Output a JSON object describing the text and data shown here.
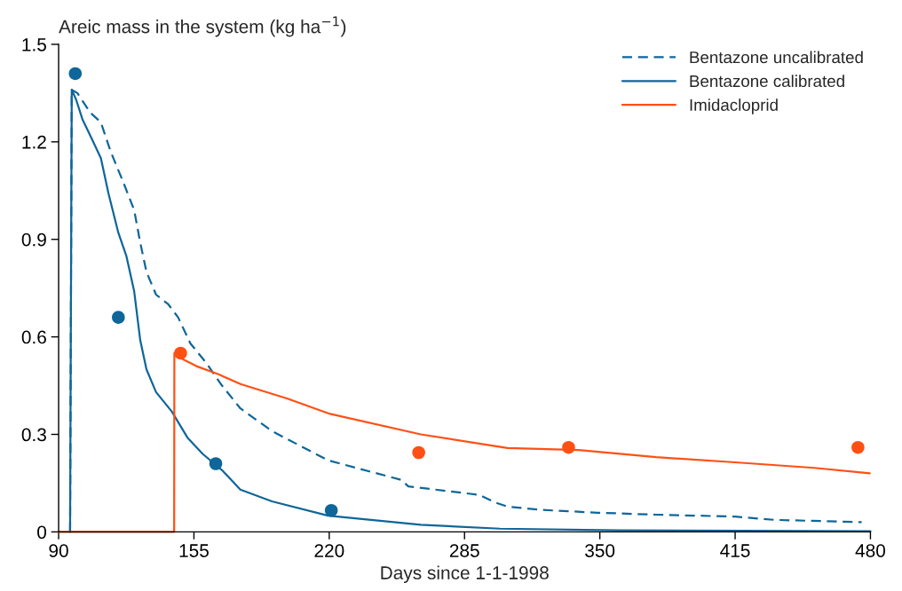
{
  "chart_data": {
    "type": "line",
    "ylabel": "Areic mass in the system (kg ha$^{−1}$)",
    "xlabel": "Days since 1-1-1998",
    "xlim": [
      90,
      480
    ],
    "xticks": [
      90,
      155,
      220,
      285,
      350,
      415,
      480
    ],
    "ylim": [
      0,
      1.5
    ],
    "yticks": [
      0,
      0.3,
      0.6,
      0.9,
      1.2,
      1.5
    ],
    "grid": false,
    "legend": "top right",
    "series": [
      {
        "name": "Bentazone uncalibrated",
        "line_style": "dashed",
        "color": "#0e6699",
        "x": [
          95.5,
          96.3,
          99,
          105.2,
          110.3,
          115,
          120.8,
          126.3,
          129.2,
          132.2,
          136.8,
          142.7,
          147.4,
          153.3,
          160.9,
          168.5,
          177.3,
          192.5,
          219.5,
          254.6,
          258,
          292,
          300,
          305.6,
          321,
          349,
          377,
          415,
          434,
          475.8
        ],
        "values": [
          0,
          1.36,
          1.35,
          1.29,
          1.26,
          1.17,
          1.08,
          0.99,
          0.89,
          0.8,
          0.73,
          0.7,
          0.66,
          0.58,
          0.52,
          0.45,
          0.38,
          0.31,
          0.22,
          0.16,
          0.14,
          0.114,
          0.09,
          0.078,
          0.068,
          0.059,
          0.053,
          0.047,
          0.037,
          0.03
        ]
      },
      {
        "name": "Bentazone calibrated",
        "line_style": "solid",
        "color": "#0e6699",
        "x": [
          95.5,
          96.3,
          98.4,
          101.4,
          105.9,
          110.3,
          114,
          118.7,
          122.5,
          126.3,
          129.2,
          132.2,
          136.8,
          144.4,
          151.9,
          159.2,
          168.5,
          177.3,
          192.5,
          219.5,
          264,
          302,
          359,
          480
        ],
        "values": [
          0,
          1.36,
          1.33,
          1.27,
          1.21,
          1.15,
          1.04,
          0.92,
          0.85,
          0.74,
          0.59,
          0.5,
          0.43,
          0.37,
          0.29,
          0.24,
          0.19,
          0.13,
          0.094,
          0.05,
          0.022,
          0.01,
          0.005,
          0.002
        ]
      },
      {
        "name": "Imidacloprid",
        "line_style": "solid",
        "color": "#ff5014",
        "x": [
          90,
          145.5,
          145.6,
          148.6,
          156.2,
          166.8,
          177.3,
          200,
          220.4,
          264,
          305.6,
          339.8,
          377,
          415,
          453,
          479.7
        ],
        "values": [
          0,
          0,
          0.55,
          0.535,
          0.51,
          0.485,
          0.455,
          0.41,
          0.363,
          0.3,
          0.258,
          0.252,
          0.23,
          0.214,
          0.197,
          0.18
        ]
      },
      {
        "type": "scatter",
        "marker": "circle",
        "color": "#0e6699",
        "x": [
          98,
          118.7,
          165.5,
          221
        ],
        "values": [
          1.41,
          0.66,
          0.21,
          0.066
        ]
      },
      {
        "type": "scatter",
        "marker": "circle",
        "color": "#ff5014",
        "x": [
          148.6,
          263,
          335,
          474
        ],
        "values": [
          0.55,
          0.244,
          0.26,
          0.26
        ]
      }
    ]
  }
}
